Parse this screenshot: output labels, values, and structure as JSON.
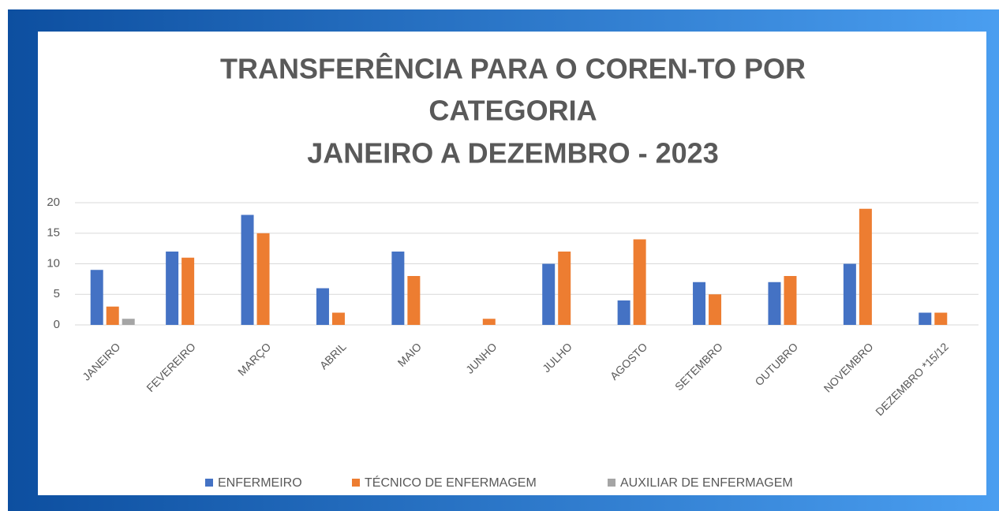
{
  "chart_data": {
    "type": "bar",
    "title": [
      "TRANSFERÊNCIA PARA O COREN-TO POR",
      "CATEGORIA",
      "JANEIRO A DEZEMBRO - 2023"
    ],
    "categories": [
      "JANEIRO",
      "FEVEREIRO",
      "MARÇO",
      "ABRIL",
      "MAIO",
      "JUNHO",
      "JULHO",
      "AGOSTO",
      "SETEMBRO",
      "OUTUBRO",
      "NOVEMBRO",
      "DEZEMBRO *15/12"
    ],
    "series": [
      {
        "name": "ENFERMEIRO",
        "color": "#4472c4",
        "values": [
          9,
          12,
          18,
          6,
          12,
          0,
          10,
          4,
          7,
          7,
          10,
          2
        ]
      },
      {
        "name": "TÉCNICO DE ENFERMAGEM",
        "color": "#ed7d31",
        "values": [
          3,
          11,
          15,
          2,
          8,
          1,
          12,
          14,
          5,
          8,
          19,
          2
        ]
      },
      {
        "name": "AUXILIAR DE ENFERMAGEM",
        "color": "#a5a5a5",
        "values": [
          1,
          0,
          0,
          0,
          0,
          0,
          0,
          0,
          0,
          0,
          0,
          0
        ]
      }
    ],
    "ylim": [
      0,
      20
    ],
    "yticks": [
      0,
      5,
      10,
      15,
      20
    ],
    "grid": true,
    "legend": "bottom"
  }
}
